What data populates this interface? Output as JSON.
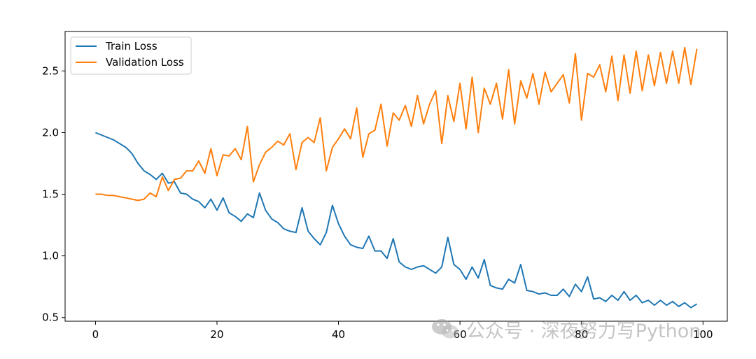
{
  "chart_data": {
    "type": "line",
    "title": "",
    "xlabel": "",
    "ylabel": "",
    "xlim": [
      -5,
      104
    ],
    "ylim": [
      0.47,
      2.82
    ],
    "xticks": [
      0,
      20,
      40,
      60,
      80,
      100
    ],
    "yticks": [
      0.5,
      1.0,
      1.5,
      2.0,
      2.5
    ],
    "xtick_labels": [
      "0",
      "20",
      "40",
      "60",
      "80",
      "100"
    ],
    "ytick_labels": [
      "0.5",
      "1.0",
      "1.5",
      "2.0",
      "2.5"
    ],
    "grid": false,
    "legend_position": "upper-left",
    "x": [
      0,
      1,
      2,
      3,
      4,
      5,
      6,
      7,
      8,
      9,
      10,
      11,
      12,
      13,
      14,
      15,
      16,
      17,
      18,
      19,
      20,
      21,
      22,
      23,
      24,
      25,
      26,
      27,
      28,
      29,
      30,
      31,
      32,
      33,
      34,
      35,
      36,
      37,
      38,
      39,
      40,
      41,
      42,
      43,
      44,
      45,
      46,
      47,
      48,
      49,
      50,
      51,
      52,
      53,
      54,
      55,
      56,
      57,
      58,
      59,
      60,
      61,
      62,
      63,
      64,
      65,
      66,
      67,
      68,
      69,
      70,
      71,
      72,
      73,
      74,
      75,
      76,
      77,
      78,
      79,
      80,
      81,
      82,
      83,
      84,
      85,
      86,
      87,
      88,
      89,
      90,
      91,
      92,
      93,
      94,
      95,
      96,
      97,
      98,
      99
    ],
    "series": [
      {
        "name": "Train Loss",
        "color": "#1f77b4",
        "values": [
          2.0,
          1.98,
          1.96,
          1.94,
          1.91,
          1.88,
          1.83,
          1.75,
          1.69,
          1.66,
          1.62,
          1.67,
          1.59,
          1.6,
          1.51,
          1.5,
          1.46,
          1.44,
          1.39,
          1.46,
          1.37,
          1.47,
          1.35,
          1.32,
          1.28,
          1.34,
          1.31,
          1.51,
          1.37,
          1.3,
          1.27,
          1.22,
          1.2,
          1.19,
          1.39,
          1.2,
          1.14,
          1.09,
          1.19,
          1.41,
          1.26,
          1.16,
          1.09,
          1.07,
          1.06,
          1.16,
          1.04,
          1.04,
          0.98,
          1.14,
          0.95,
          0.91,
          0.89,
          0.91,
          0.92,
          0.89,
          0.86,
          0.91,
          1.15,
          0.93,
          0.89,
          0.81,
          0.91,
          0.82,
          0.97,
          0.76,
          0.74,
          0.73,
          0.81,
          0.78,
          0.93,
          0.72,
          0.71,
          0.69,
          0.7,
          0.68,
          0.68,
          0.73,
          0.67,
          0.77,
          0.71,
          0.83,
          0.65,
          0.66,
          0.63,
          0.68,
          0.64,
          0.71,
          0.64,
          0.68,
          0.62,
          0.64,
          0.6,
          0.64,
          0.6,
          0.63,
          0.59,
          0.62,
          0.58,
          0.61
        ]
      },
      {
        "name": "Validation Loss",
        "color": "#ff7f0e",
        "values": [
          1.5,
          1.5,
          1.49,
          1.49,
          1.48,
          1.47,
          1.46,
          1.45,
          1.46,
          1.51,
          1.48,
          1.64,
          1.53,
          1.62,
          1.63,
          1.69,
          1.69,
          1.77,
          1.67,
          1.87,
          1.65,
          1.82,
          1.81,
          1.87,
          1.78,
          2.05,
          1.6,
          1.74,
          1.84,
          1.88,
          1.93,
          1.9,
          1.99,
          1.7,
          1.92,
          1.96,
          1.92,
          2.12,
          1.69,
          1.88,
          1.95,
          2.03,
          1.95,
          2.2,
          1.8,
          1.99,
          2.02,
          2.23,
          1.89,
          2.16,
          2.1,
          2.22,
          2.05,
          2.3,
          2.07,
          2.23,
          2.34,
          1.91,
          2.3,
          2.09,
          2.4,
          2.03,
          2.45,
          2.0,
          2.36,
          2.23,
          2.4,
          2.11,
          2.51,
          2.07,
          2.42,
          2.28,
          2.48,
          2.23,
          2.49,
          2.33,
          2.4,
          2.47,
          2.24,
          2.64,
          2.1,
          2.48,
          2.45,
          2.55,
          2.33,
          2.62,
          2.26,
          2.63,
          2.32,
          2.66,
          2.34,
          2.63,
          2.38,
          2.65,
          2.4,
          2.66,
          2.4,
          2.69,
          2.39,
          2.68
        ]
      }
    ]
  },
  "watermark": {
    "text": "公众号 · 深夜努力写Python",
    "icon": "wechat-icon"
  }
}
